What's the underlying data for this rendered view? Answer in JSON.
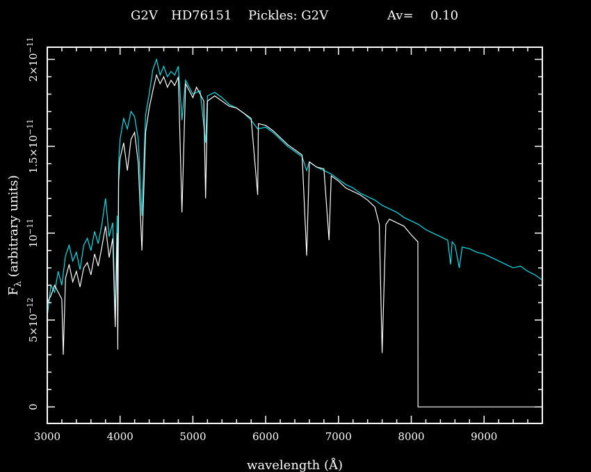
{
  "chart_data": {
    "type": "line",
    "title_parts": [
      "G2V",
      "HD76151",
      "Pickles: G2V",
      "Av=",
      "0.10"
    ],
    "xlabel": "wavelength (Å)",
    "ylabel_main": "F",
    "ylabel_sub": "λ",
    "ylabel_rest": " (arbitrary units)",
    "xlim": [
      3000,
      9800
    ],
    "ylim": [
      -9.5e-13,
      2.07e-11
    ],
    "x_ticks": [
      {
        "value": 3000,
        "label": "3000"
      },
      {
        "value": 4000,
        "label": "4000"
      },
      {
        "value": 5000,
        "label": "5000"
      },
      {
        "value": 6000,
        "label": "6000"
      },
      {
        "value": 7000,
        "label": "7000"
      },
      {
        "value": 8000,
        "label": "8000"
      },
      {
        "value": 9000,
        "label": "9000"
      }
    ],
    "y_ticks": [
      {
        "value": 0,
        "mant": "0",
        "exp": ""
      },
      {
        "value": 5e-12,
        "mant": "5×10",
        "exp": "−12"
      },
      {
        "value": 1e-11,
        "mant": "10",
        "exp": "−11"
      },
      {
        "value": 1.5e-11,
        "mant": "1.5×10",
        "exp": "−11"
      },
      {
        "value": 2e-11,
        "mant": "2×10",
        "exp": "−11"
      }
    ],
    "x_minor_step": 200,
    "y_minor_step": 1e-12,
    "background": "#000000",
    "axis_color": "#ffffff",
    "grid": false,
    "series": [
      {
        "color": "#ffffff",
        "points": [
          [
            3000,
            6e-12
          ],
          [
            3050,
            6.4e-12
          ],
          [
            3100,
            7e-12
          ],
          [
            3150,
            6.6e-12
          ],
          [
            3200,
            6.2e-12
          ],
          [
            3220,
            3e-12
          ],
          [
            3250,
            7.4e-12
          ],
          [
            3300,
            8.2e-12
          ],
          [
            3350,
            7.2e-12
          ],
          [
            3400,
            7.8e-12
          ],
          [
            3450,
            6.9e-12
          ],
          [
            3500,
            8e-12
          ],
          [
            3550,
            8.3e-12
          ],
          [
            3600,
            7.6e-12
          ],
          [
            3650,
            8.8e-12
          ],
          [
            3700,
            8.1e-12
          ],
          [
            3750,
            9.2e-12
          ],
          [
            3800,
            1.04e-11
          ],
          [
            3850,
            8.6e-12
          ],
          [
            3900,
            9.7e-12
          ],
          [
            3933,
            4.6e-12
          ],
          [
            3960,
            1e-11
          ],
          [
            3968,
            3.3e-12
          ],
          [
            3980,
            1.3e-11
          ],
          [
            4000,
            1.43e-11
          ],
          [
            4050,
            1.52e-11
          ],
          [
            4100,
            1.36e-11
          ],
          [
            4150,
            1.54e-11
          ],
          [
            4200,
            1.58e-11
          ],
          [
            4250,
            1.4e-11
          ],
          [
            4300,
            9e-12
          ],
          [
            4350,
            1.58e-11
          ],
          [
            4400,
            1.72e-11
          ],
          [
            4450,
            1.82e-11
          ],
          [
            4500,
            1.91e-11
          ],
          [
            4550,
            1.86e-11
          ],
          [
            4600,
            1.9e-11
          ],
          [
            4650,
            1.84e-11
          ],
          [
            4700,
            1.88e-11
          ],
          [
            4750,
            1.85e-11
          ],
          [
            4800,
            1.9e-11
          ],
          [
            4850,
            1.12e-11
          ],
          [
            4900,
            1.86e-11
          ],
          [
            4950,
            1.82e-11
          ],
          [
            5000,
            1.78e-11
          ],
          [
            5050,
            1.84e-11
          ],
          [
            5100,
            1.8e-11
          ],
          [
            5150,
            1.76e-11
          ],
          [
            5175,
            1.2e-11
          ],
          [
            5200,
            1.76e-11
          ],
          [
            5300,
            1.79e-11
          ],
          [
            5400,
            1.76e-11
          ],
          [
            5500,
            1.73e-11
          ],
          [
            5600,
            1.72e-11
          ],
          [
            5700,
            1.69e-11
          ],
          [
            5800,
            1.66e-11
          ],
          [
            5890,
            1.22e-11
          ],
          [
            5900,
            1.63e-11
          ],
          [
            6000,
            1.62e-11
          ],
          [
            6100,
            1.59e-11
          ],
          [
            6200,
            1.55e-11
          ],
          [
            6300,
            1.51e-11
          ],
          [
            6400,
            1.48e-11
          ],
          [
            6500,
            1.45e-11
          ],
          [
            6563,
            8.7e-12
          ],
          [
            6600,
            1.41e-11
          ],
          [
            6700,
            1.38e-11
          ],
          [
            6800,
            1.37e-11
          ],
          [
            6870,
            9.6e-12
          ],
          [
            6900,
            1.33e-11
          ],
          [
            7000,
            1.3e-11
          ],
          [
            7100,
            1.26e-11
          ],
          [
            7200,
            1.24e-11
          ],
          [
            7300,
            1.22e-11
          ],
          [
            7400,
            1.19e-11
          ],
          [
            7500,
            1.15e-11
          ],
          [
            7560,
            1.05e-11
          ],
          [
            7600,
            3.1e-12
          ],
          [
            7650,
            1.05e-11
          ],
          [
            7700,
            1.08e-11
          ],
          [
            7800,
            1.06e-11
          ],
          [
            7900,
            1.04e-11
          ],
          [
            8000,
            9.9e-12
          ],
          [
            8090,
            9.5e-12
          ],
          [
            8092,
            0
          ],
          [
            9800,
            0
          ]
        ]
      },
      {
        "color": "#00e5ee",
        "points": [
          [
            3000,
            5.2e-12
          ],
          [
            3050,
            7e-12
          ],
          [
            3100,
            6.6e-12
          ],
          [
            3150,
            7.8e-12
          ],
          [
            3200,
            7e-12
          ],
          [
            3250,
            8.7e-12
          ],
          [
            3300,
            9.3e-12
          ],
          [
            3350,
            8.4e-12
          ],
          [
            3400,
            8.9e-12
          ],
          [
            3450,
            7.9e-12
          ],
          [
            3500,
            9.3e-12
          ],
          [
            3550,
            9.7e-12
          ],
          [
            3600,
            9e-12
          ],
          [
            3650,
            1.01e-11
          ],
          [
            3700,
            9.4e-12
          ],
          [
            3750,
            1.05e-11
          ],
          [
            3800,
            1.2e-11
          ],
          [
            3850,
            9.8e-12
          ],
          [
            3900,
            1.06e-11
          ],
          [
            3933,
            5e-12
          ],
          [
            3960,
            1.1e-11
          ],
          [
            3968,
            5.5e-12
          ],
          [
            3980,
            1.4e-11
          ],
          [
            4000,
            1.54e-11
          ],
          [
            4050,
            1.66e-11
          ],
          [
            4100,
            1.6e-11
          ],
          [
            4150,
            1.7e-11
          ],
          [
            4200,
            1.67e-11
          ],
          [
            4250,
            1.54e-11
          ],
          [
            4300,
            1.1e-11
          ],
          [
            4350,
            1.68e-11
          ],
          [
            4400,
            1.8e-11
          ],
          [
            4450,
            1.94e-11
          ],
          [
            4500,
            2e-11
          ],
          [
            4550,
            1.91e-11
          ],
          [
            4600,
            1.96e-11
          ],
          [
            4650,
            1.9e-11
          ],
          [
            4700,
            1.93e-11
          ],
          [
            4750,
            1.91e-11
          ],
          [
            4800,
            1.96e-11
          ],
          [
            4850,
            1.65e-11
          ],
          [
            4900,
            1.88e-11
          ],
          [
            4950,
            1.84e-11
          ],
          [
            5000,
            1.8e-11
          ],
          [
            5100,
            1.82e-11
          ],
          [
            5175,
            1.52e-11
          ],
          [
            5200,
            1.79e-11
          ],
          [
            5300,
            1.81e-11
          ],
          [
            5400,
            1.78e-11
          ],
          [
            5500,
            1.74e-11
          ],
          [
            5600,
            1.72e-11
          ],
          [
            5700,
            1.69e-11
          ],
          [
            5800,
            1.65e-11
          ],
          [
            5890,
            1.6e-11
          ],
          [
            6000,
            1.61e-11
          ],
          [
            6100,
            1.58e-11
          ],
          [
            6200,
            1.54e-11
          ],
          [
            6300,
            1.5e-11
          ],
          [
            6400,
            1.47e-11
          ],
          [
            6500,
            1.44e-11
          ],
          [
            6563,
            1.36e-11
          ],
          [
            6600,
            1.41e-11
          ],
          [
            6700,
            1.38e-11
          ],
          [
            6800,
            1.36e-11
          ],
          [
            6900,
            1.34e-11
          ],
          [
            7000,
            1.31e-11
          ],
          [
            7100,
            1.28e-11
          ],
          [
            7200,
            1.26e-11
          ],
          [
            7300,
            1.23e-11
          ],
          [
            7400,
            1.21e-11
          ],
          [
            7500,
            1.19e-11
          ],
          [
            7600,
            1.16e-11
          ],
          [
            7700,
            1.14e-11
          ],
          [
            7800,
            1.12e-11
          ],
          [
            7900,
            1.09e-11
          ],
          [
            8000,
            1.07e-11
          ],
          [
            8100,
            1.05e-11
          ],
          [
            8200,
            1.02e-11
          ],
          [
            8300,
            1e-11
          ],
          [
            8400,
            9.8e-12
          ],
          [
            8500,
            9.6e-12
          ],
          [
            8540,
            8.2e-12
          ],
          [
            8560,
            9.5e-12
          ],
          [
            8600,
            9.3e-12
          ],
          [
            8660,
            8e-12
          ],
          [
            8700,
            9.2e-12
          ],
          [
            8800,
            9.1e-12
          ],
          [
            8900,
            8.9e-12
          ],
          [
            9000,
            8.8e-12
          ],
          [
            9100,
            8.6e-12
          ],
          [
            9200,
            8.4e-12
          ],
          [
            9300,
            8.2e-12
          ],
          [
            9400,
            8e-12
          ],
          [
            9500,
            8.1e-12
          ],
          [
            9600,
            7.8e-12
          ],
          [
            9700,
            7.6e-12
          ],
          [
            9800,
            7.3e-12
          ]
        ]
      }
    ]
  }
}
